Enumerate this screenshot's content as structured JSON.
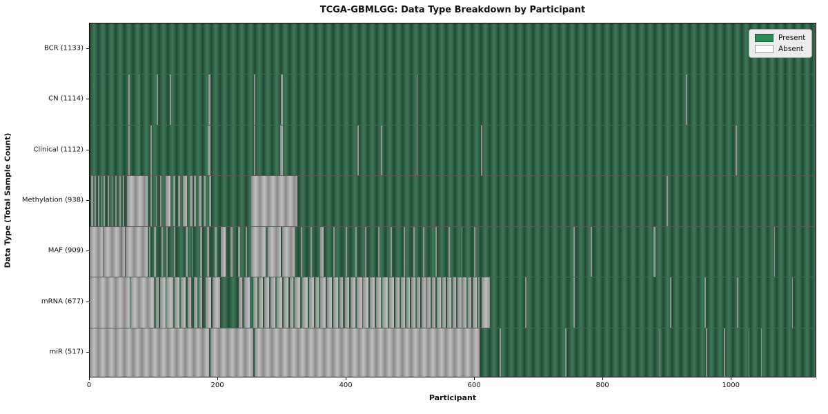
{
  "title": "TCGA-GBMLGG: Data Type Breakdown by Participant",
  "xlabel": "Participant",
  "ylabel": "Data Type (Total Sample Count)",
  "legend": {
    "present_label": "Present",
    "absent_label": "Absent"
  },
  "colors": {
    "present": "#2e8b57",
    "absent": "#ffffff",
    "present_render": "#2f5f44",
    "absent_render": "#a6a6a6",
    "legend_bg": "#ececec",
    "axis": "#000000"
  },
  "chart_data": {
    "type": "heatmap",
    "title": "TCGA-GBMLGG: Data Type Breakdown by Participant",
    "xlabel": "Participant",
    "ylabel": "Data Type (Total Sample Count)",
    "legend_entries": [
      "Present",
      "Absent"
    ],
    "legend_position": "upper right",
    "n_participants": 1133,
    "x_axis": {
      "min": 0,
      "max": 1133,
      "ticks": [
        0,
        200,
        400,
        600,
        800,
        1000
      ]
    },
    "rows": [
      {
        "label": "BCR (1133)",
        "name": "BCR",
        "present_count": 1133,
        "absent_count": 0,
        "absent_runs": []
      },
      {
        "label": "CN (1114)",
        "name": "CN",
        "present_count": 1114,
        "absent_count": 19,
        "absent_runs": [
          [
            60,
            62
          ],
          [
            76,
            78
          ],
          [
            105,
            107
          ],
          [
            125,
            127
          ],
          [
            185,
            189
          ],
          [
            256,
            258
          ],
          [
            298,
            302
          ],
          [
            510,
            512
          ],
          [
            930,
            933
          ]
        ]
      },
      {
        "label": "Clinical (1112)",
        "name": "Clinical",
        "present_count": 1112,
        "absent_count": 21,
        "absent_runs": [
          [
            60,
            62
          ],
          [
            76,
            78
          ],
          [
            95,
            97
          ],
          [
            184,
            189
          ],
          [
            256,
            258
          ],
          [
            297,
            302
          ],
          [
            418,
            420
          ],
          [
            455,
            457
          ],
          [
            510,
            512
          ],
          [
            611,
            613
          ],
          [
            1008,
            1010
          ]
        ]
      },
      {
        "label": "Methylation (938)",
        "name": "Methylation",
        "present_count": 938,
        "absent_count": 195,
        "absent_runs": [
          [
            2,
            5
          ],
          [
            8,
            10
          ],
          [
            13,
            15
          ],
          [
            18,
            19
          ],
          [
            22,
            24
          ],
          [
            28,
            30
          ],
          [
            34,
            36
          ],
          [
            40,
            42
          ],
          [
            46,
            48
          ],
          [
            52,
            54
          ],
          [
            58,
            90
          ],
          [
            95,
            97
          ],
          [
            103,
            105
          ],
          [
            110,
            112
          ],
          [
            119,
            126
          ],
          [
            130,
            134
          ],
          [
            138,
            141
          ],
          [
            145,
            152
          ],
          [
            156,
            160
          ],
          [
            163,
            166
          ],
          [
            170,
            174
          ],
          [
            178,
            181
          ],
          [
            186,
            190
          ],
          [
            252,
            324
          ],
          [
            900,
            902
          ]
        ]
      },
      {
        "label": "MAF (909)",
        "name": "MAF",
        "present_count": 909,
        "absent_count": 224,
        "absent_runs": [
          [
            0,
            20
          ],
          [
            22,
            48
          ],
          [
            50,
            55
          ],
          [
            56,
            90
          ],
          [
            93,
            95
          ],
          [
            100,
            103
          ],
          [
            112,
            114
          ],
          [
            120,
            122
          ],
          [
            131,
            134
          ],
          [
            150,
            153
          ],
          [
            160,
            162
          ],
          [
            172,
            176
          ],
          [
            183,
            186
          ],
          [
            195,
            198
          ],
          [
            205,
            212
          ],
          [
            220,
            223
          ],
          [
            232,
            235
          ],
          [
            243,
            246
          ],
          [
            252,
            275
          ],
          [
            278,
            298
          ],
          [
            301,
            320
          ],
          [
            330,
            332
          ],
          [
            345,
            347
          ],
          [
            360,
            365
          ],
          [
            380,
            382
          ],
          [
            400,
            402
          ],
          [
            415,
            417
          ],
          [
            430,
            432
          ],
          [
            450,
            452
          ],
          [
            470,
            472
          ],
          [
            490,
            492
          ],
          [
            505,
            507
          ],
          [
            520,
            522
          ],
          [
            540,
            542
          ],
          [
            560,
            562
          ],
          [
            580,
            582
          ],
          [
            600,
            602
          ],
          [
            755,
            757
          ],
          [
            782,
            784
          ],
          [
            880,
            883
          ],
          [
            1068,
            1070
          ]
        ]
      },
      {
        "label": "mRNA (677)",
        "name": "mRNA",
        "present_count": 677,
        "absent_count": 456,
        "absent_runs": [
          [
            0,
            62
          ],
          [
            64,
            100
          ],
          [
            103,
            108
          ],
          [
            110,
            118
          ],
          [
            120,
            130
          ],
          [
            132,
            140
          ],
          [
            142,
            150
          ],
          [
            153,
            158
          ],
          [
            163,
            168
          ],
          [
            171,
            176
          ],
          [
            181,
            190
          ],
          [
            192,
            204
          ],
          [
            233,
            238
          ],
          [
            241,
            250
          ],
          [
            255,
            262
          ],
          [
            264,
            270
          ],
          [
            272,
            280
          ],
          [
            282,
            290
          ],
          [
            292,
            300
          ],
          [
            303,
            310
          ],
          [
            312,
            318
          ],
          [
            320,
            328
          ],
          [
            332,
            340
          ],
          [
            342,
            350
          ],
          [
            352,
            358
          ],
          [
            360,
            368
          ],
          [
            370,
            378
          ],
          [
            380,
            388
          ],
          [
            390,
            395
          ],
          [
            398,
            405
          ],
          [
            407,
            415
          ],
          [
            417,
            425
          ],
          [
            427,
            435
          ],
          [
            437,
            445
          ],
          [
            447,
            455
          ],
          [
            457,
            465
          ],
          [
            467,
            475
          ],
          [
            477,
            484
          ],
          [
            486,
            492
          ],
          [
            494,
            500
          ],
          [
            502,
            508
          ],
          [
            510,
            516
          ],
          [
            518,
            524
          ],
          [
            526,
            532
          ],
          [
            534,
            540
          ],
          [
            542,
            548
          ],
          [
            550,
            556
          ],
          [
            558,
            564
          ],
          [
            566,
            572
          ],
          [
            574,
            580
          ],
          [
            582,
            588
          ],
          [
            590,
            596
          ],
          [
            598,
            604
          ],
          [
            606,
            609
          ],
          [
            612,
            625
          ],
          [
            680,
            682
          ],
          [
            755,
            757
          ],
          [
            906,
            908
          ],
          [
            960,
            962
          ],
          [
            1010,
            1012
          ],
          [
            1096,
            1098
          ]
        ]
      },
      {
        "label": "miR (517)",
        "name": "miR",
        "present_count": 517,
        "absent_count": 616,
        "absent_runs": [
          [
            0,
            186
          ],
          [
            188,
            255
          ],
          [
            257,
            609
          ],
          [
            640,
            642
          ],
          [
            742,
            744
          ],
          [
            890,
            891
          ],
          [
            962,
            964
          ],
          [
            990,
            992
          ],
          [
            1028,
            1030
          ],
          [
            1048,
            1049
          ]
        ]
      }
    ]
  }
}
